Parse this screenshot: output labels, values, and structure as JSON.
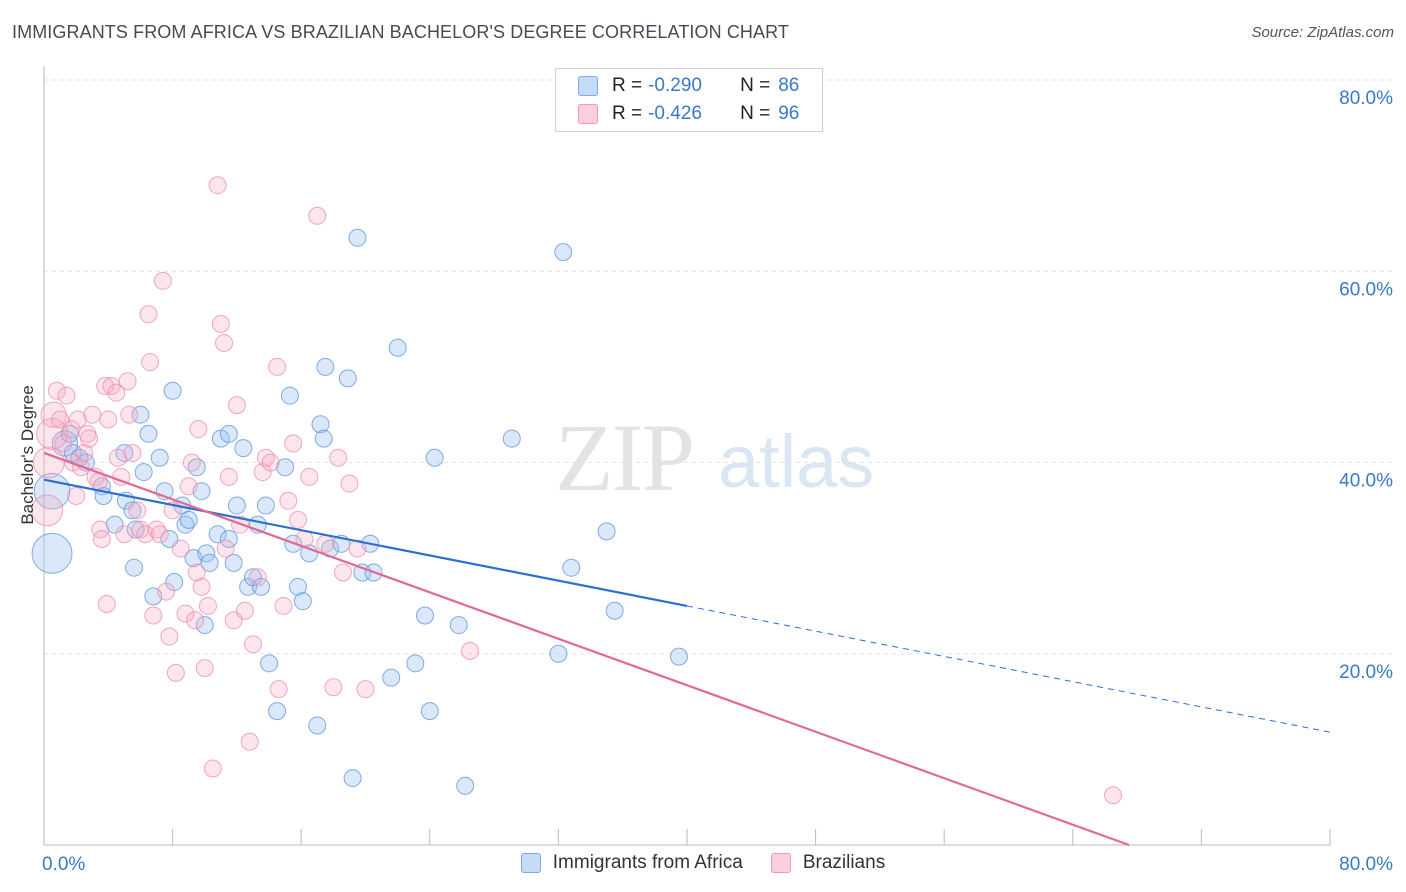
{
  "title": "IMMIGRANTS FROM AFRICA VS BRAZILIAN BACHELOR'S DEGREE CORRELATION CHART",
  "source": "Source: ZipAtlas.com",
  "watermark": {
    "zip": "ZIP",
    "atlas": "atlas"
  },
  "stats": [
    {
      "r_label": "R =",
      "r_value": "-0.290",
      "n_label": "N =",
      "n_value": "86",
      "color": "#7aaae8",
      "fill": "#c5dbf6"
    },
    {
      "r_label": "R =",
      "r_value": "-0.426",
      "n_label": "N =",
      "n_value": "96",
      "color": "#f09ab5",
      "fill": "#fbd0de"
    }
  ],
  "legend": [
    {
      "label": "Immigrants from Africa",
      "color": "#7aaae8",
      "fill": "#c5dbf6"
    },
    {
      "label": "Brazilians",
      "color": "#f09ab5",
      "fill": "#fbd0de"
    }
  ],
  "chart_data": {
    "type": "scatter",
    "ylabel": "Bachelor's Degree",
    "xlim": [
      0,
      80
    ],
    "ylim": [
      0,
      80
    ],
    "x_tick_labels": [
      "0.0%",
      "80.0%"
    ],
    "y_tick_labels": [
      "20.0%",
      "40.0%",
      "60.0%",
      "80.0%"
    ],
    "y_ticks": [
      20,
      40,
      60,
      80
    ],
    "grid": "horizontal dashed",
    "series": [
      {
        "name": "Immigrants from Africa",
        "color": "#5b93da",
        "fill": "rgba(150,190,240,0.35)",
        "trend": {
          "x0": 0,
          "y0": 38.2,
          "x1": 40,
          "y1": 25.0,
          "dash_to_x": 80,
          "dash_to_y": 11.8,
          "color": "#2d6fd1"
        },
        "points": [
          [
            0.5,
            37,
            4
          ],
          [
            0.5,
            30.5,
            5
          ],
          [
            1.3,
            42,
            2
          ],
          [
            1.6,
            43,
            1
          ],
          [
            1.8,
            41,
            1
          ],
          [
            2.2,
            40.5,
            1
          ],
          [
            2.6,
            40,
            1
          ],
          [
            3.6,
            37.5,
            1
          ],
          [
            3.7,
            36.5,
            1
          ],
          [
            4.4,
            33.5,
            1
          ],
          [
            5.0,
            41,
            1
          ],
          [
            5.1,
            36,
            1
          ],
          [
            5.5,
            35,
            1
          ],
          [
            5.7,
            33,
            1
          ],
          [
            5.6,
            29,
            1
          ],
          [
            6.0,
            45,
            1
          ],
          [
            6.2,
            39,
            1
          ],
          [
            6.5,
            43,
            1
          ],
          [
            6.8,
            26,
            1
          ],
          [
            7.2,
            40.5,
            1
          ],
          [
            7.5,
            37,
            1
          ],
          [
            7.8,
            32,
            1
          ],
          [
            8.0,
            47.5,
            1
          ],
          [
            8.1,
            27.5,
            1
          ],
          [
            8.6,
            35.5,
            1
          ],
          [
            8.8,
            33.5,
            1
          ],
          [
            9.0,
            34,
            1
          ],
          [
            9.3,
            30,
            1
          ],
          [
            9.5,
            39.5,
            1
          ],
          [
            9.8,
            37,
            1
          ],
          [
            10.0,
            23,
            1
          ],
          [
            10.1,
            30.5,
            1
          ],
          [
            10.3,
            29.5,
            1
          ],
          [
            10.8,
            32.5,
            1
          ],
          [
            11.0,
            42.5,
            1
          ],
          [
            11.5,
            43,
            1
          ],
          [
            11.5,
            32,
            1
          ],
          [
            11.8,
            29.5,
            1
          ],
          [
            12.0,
            35.5,
            1
          ],
          [
            12.4,
            41.5,
            1
          ],
          [
            12.7,
            27,
            1
          ],
          [
            13.0,
            28,
            1
          ],
          [
            13.3,
            33.5,
            1
          ],
          [
            13.5,
            27,
            1
          ],
          [
            13.8,
            35.5,
            1
          ],
          [
            14.0,
            19,
            1
          ],
          [
            14.5,
            14,
            1
          ],
          [
            15.0,
            39.5,
            1
          ],
          [
            15.3,
            47,
            1
          ],
          [
            15.5,
            31.5,
            1
          ],
          [
            15.8,
            27,
            1
          ],
          [
            16.1,
            25.5,
            1
          ],
          [
            16.5,
            30.5,
            1
          ],
          [
            17.0,
            12.5,
            1
          ],
          [
            17.2,
            44,
            1
          ],
          [
            17.4,
            42.5,
            1
          ],
          [
            17.5,
            50,
            1
          ],
          [
            17.8,
            31,
            1
          ],
          [
            18.5,
            31.5,
            1
          ],
          [
            18.9,
            48.8,
            1
          ],
          [
            19.2,
            7,
            1
          ],
          [
            19.5,
            63.5,
            1
          ],
          [
            19.8,
            28.5,
            1
          ],
          [
            20.3,
            31.5,
            1
          ],
          [
            20.5,
            28.5,
            1
          ],
          [
            21.6,
            17.5,
            1
          ],
          [
            22.0,
            52,
            1
          ],
          [
            23.1,
            19,
            1
          ],
          [
            23.7,
            24,
            1
          ],
          [
            24.0,
            14,
            1
          ],
          [
            24.3,
            40.5,
            1
          ],
          [
            25.8,
            23,
            1
          ],
          [
            26.2,
            6.2,
            1
          ],
          [
            29.1,
            42.5,
            1
          ],
          [
            32.0,
            20,
            1
          ],
          [
            32.3,
            62,
            1
          ],
          [
            32.8,
            29,
            1
          ],
          [
            35.0,
            32.8,
            1
          ],
          [
            35.5,
            24.5,
            1
          ],
          [
            39.5,
            19.7,
            1
          ]
        ]
      },
      {
        "name": "Brazilians",
        "color": "#ee8cab",
        "fill": "rgba(245,170,195,0.30)",
        "trend": {
          "x0": 0,
          "y0": 41.0,
          "x1": 67.5,
          "y1": 0,
          "color": "#e06a95"
        },
        "points": [
          [
            0.2,
            35,
            3
          ],
          [
            0.3,
            40,
            3
          ],
          [
            0.5,
            43,
            3
          ],
          [
            0.6,
            45,
            2
          ],
          [
            0.8,
            47.5,
            1
          ],
          [
            1.0,
            44.5,
            1
          ],
          [
            1.2,
            42,
            1
          ],
          [
            1.4,
            47,
            1
          ],
          [
            1.7,
            43.5,
            1
          ],
          [
            1.8,
            40,
            1
          ],
          [
            2.0,
            36.5,
            1
          ],
          [
            2.1,
            44.5,
            1
          ],
          [
            2.3,
            39.5,
            1
          ],
          [
            2.5,
            41,
            1
          ],
          [
            2.7,
            43,
            1
          ],
          [
            2.8,
            42.5,
            1
          ],
          [
            3.0,
            45,
            1
          ],
          [
            3.2,
            38.5,
            1
          ],
          [
            3.4,
            38,
            1
          ],
          [
            3.5,
            33,
            1
          ],
          [
            3.6,
            32,
            1
          ],
          [
            3.8,
            48,
            1
          ],
          [
            3.9,
            25.2,
            1
          ],
          [
            4.0,
            44.5,
            1
          ],
          [
            4.2,
            48,
            1
          ],
          [
            4.5,
            47.3,
            1
          ],
          [
            4.6,
            40.5,
            1
          ],
          [
            4.8,
            38.5,
            1
          ],
          [
            5.0,
            32.5,
            1
          ],
          [
            5.2,
            48.5,
            1
          ],
          [
            5.3,
            45,
            1
          ],
          [
            5.5,
            41,
            1
          ],
          [
            5.8,
            35,
            1
          ],
          [
            6.0,
            33,
            1
          ],
          [
            6.3,
            32.5,
            1
          ],
          [
            6.5,
            55.5,
            1
          ],
          [
            6.6,
            50.5,
            1
          ],
          [
            6.8,
            24,
            1
          ],
          [
            7.0,
            33,
            1
          ],
          [
            7.2,
            32.5,
            1
          ],
          [
            7.4,
            59,
            1
          ],
          [
            7.6,
            26.5,
            1
          ],
          [
            7.8,
            21.8,
            1
          ],
          [
            8.0,
            35,
            1
          ],
          [
            8.2,
            18,
            1
          ],
          [
            8.5,
            31,
            1
          ],
          [
            8.8,
            24.2,
            1
          ],
          [
            9.0,
            37.5,
            1
          ],
          [
            9.2,
            40,
            1
          ],
          [
            9.4,
            23.5,
            1
          ],
          [
            9.5,
            28.5,
            1
          ],
          [
            9.6,
            43.5,
            1
          ],
          [
            9.8,
            27,
            1
          ],
          [
            10.0,
            18.5,
            1
          ],
          [
            10.2,
            25,
            1
          ],
          [
            10.5,
            8,
            1
          ],
          [
            10.8,
            69,
            1
          ],
          [
            11.0,
            54.5,
            1
          ],
          [
            11.2,
            52.5,
            1
          ],
          [
            11.3,
            31,
            1
          ],
          [
            11.5,
            38.5,
            1
          ],
          [
            11.8,
            23.5,
            1
          ],
          [
            12.0,
            46,
            1
          ],
          [
            12.2,
            33.5,
            1
          ],
          [
            12.5,
            24.5,
            1
          ],
          [
            12.8,
            10.8,
            1
          ],
          [
            13.0,
            21,
            1
          ],
          [
            13.3,
            28,
            1
          ],
          [
            13.6,
            39,
            1
          ],
          [
            13.8,
            40.5,
            1
          ],
          [
            14.1,
            40,
            1
          ],
          [
            14.5,
            50,
            1
          ],
          [
            14.6,
            16.3,
            1
          ],
          [
            14.9,
            25,
            1
          ],
          [
            15.2,
            36,
            1
          ],
          [
            15.5,
            42,
            1
          ],
          [
            15.8,
            34,
            1
          ],
          [
            16.2,
            32,
            1
          ],
          [
            16.5,
            38.5,
            1
          ],
          [
            17.0,
            65.8,
            1
          ],
          [
            17.5,
            31.5,
            1
          ],
          [
            18.0,
            16.5,
            1
          ],
          [
            18.3,
            40.5,
            1
          ],
          [
            18.6,
            28.5,
            1
          ],
          [
            19.0,
            37.8,
            1
          ],
          [
            19.5,
            31,
            1
          ],
          [
            20.0,
            16.3,
            1
          ],
          [
            26.5,
            20.3,
            1
          ],
          [
            66.5,
            5.2,
            1
          ]
        ]
      }
    ]
  }
}
